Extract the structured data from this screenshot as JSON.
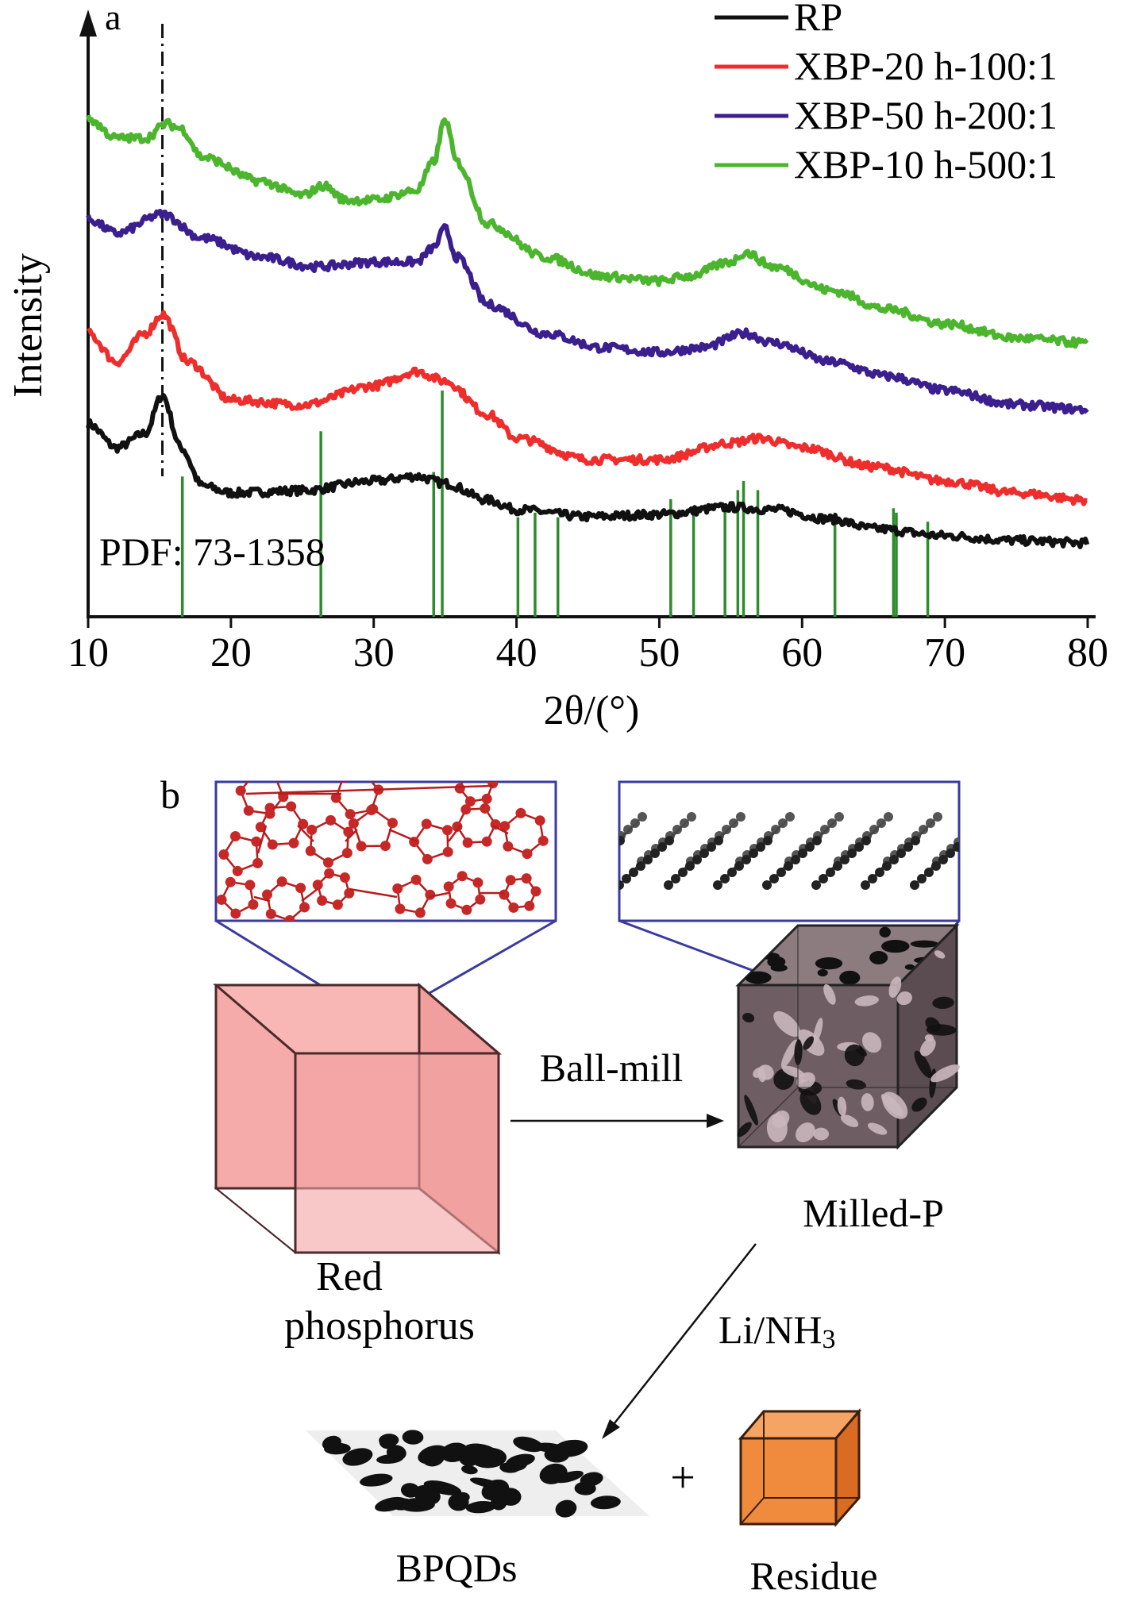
{
  "panel_a_label": "a",
  "panel_b_label": "b",
  "chart_data": {
    "type": "line",
    "title": "",
    "xlabel": "2θ/(°)",
    "ylabel": "Intensity",
    "xlim": [
      10,
      80
    ],
    "xticks": [
      10,
      20,
      30,
      40,
      50,
      60,
      70,
      80
    ],
    "legend_position": "top-right",
    "annotation": "PDF: 73-1358",
    "reference_line_x": 15.2,
    "series": [
      {
        "name": "RP",
        "color": "#111111",
        "points": [
          [
            10,
            0.62
          ],
          [
            12,
            0.52
          ],
          [
            14,
            0.58
          ],
          [
            15.2,
            0.74
          ],
          [
            16.5,
            0.52
          ],
          [
            18,
            0.36
          ],
          [
            20,
            0.33
          ],
          [
            25,
            0.34
          ],
          [
            30,
            0.38
          ],
          [
            33,
            0.4
          ],
          [
            35,
            0.37
          ],
          [
            38,
            0.3
          ],
          [
            40,
            0.26
          ],
          [
            45,
            0.23
          ],
          [
            50,
            0.24
          ],
          [
            55,
            0.27
          ],
          [
            58,
            0.26
          ],
          [
            62,
            0.22
          ],
          [
            65,
            0.18
          ],
          [
            70,
            0.15
          ],
          [
            75,
            0.13
          ],
          [
            80,
            0.12
          ]
        ]
      },
      {
        "name": "XBP-20 h-100:1",
        "color": "#ee2d2d",
        "points": [
          [
            10,
            1.0
          ],
          [
            12,
            0.88
          ],
          [
            14,
            1.0
          ],
          [
            15.2,
            1.08
          ],
          [
            17,
            0.88
          ],
          [
            20,
            0.72
          ],
          [
            25,
            0.7
          ],
          [
            30,
            0.78
          ],
          [
            33,
            0.84
          ],
          [
            35,
            0.8
          ],
          [
            38,
            0.66
          ],
          [
            40,
            0.56
          ],
          [
            45,
            0.47
          ],
          [
            50,
            0.47
          ],
          [
            55,
            0.54
          ],
          [
            57,
            0.56
          ],
          [
            60,
            0.52
          ],
          [
            65,
            0.44
          ],
          [
            70,
            0.38
          ],
          [
            75,
            0.33
          ],
          [
            80,
            0.3
          ]
        ]
      },
      {
        "name": "XBP-50 h-200:1",
        "color": "#3b1f8f",
        "points": [
          [
            10,
            1.48
          ],
          [
            12,
            1.42
          ],
          [
            15.2,
            1.5
          ],
          [
            18,
            1.4
          ],
          [
            22,
            1.32
          ],
          [
            26,
            1.28
          ],
          [
            30,
            1.3
          ],
          [
            33,
            1.3
          ],
          [
            34.2,
            1.36
          ],
          [
            35,
            1.44
          ],
          [
            35.8,
            1.32
          ],
          [
            38,
            1.12
          ],
          [
            42,
            1.0
          ],
          [
            46,
            0.94
          ],
          [
            50,
            0.92
          ],
          [
            53,
            0.94
          ],
          [
            56,
            1.0
          ],
          [
            58,
            0.96
          ],
          [
            62,
            0.88
          ],
          [
            66,
            0.82
          ],
          [
            70,
            0.76
          ],
          [
            75,
            0.7
          ],
          [
            80,
            0.68
          ]
        ]
      },
      {
        "name": "XBP-10 h-500:1",
        "color": "#4cb52e",
        "points": [
          [
            10,
            1.9
          ],
          [
            12,
            1.82
          ],
          [
            14,
            1.82
          ],
          [
            15.5,
            1.88
          ],
          [
            16.5,
            1.86
          ],
          [
            18,
            1.74
          ],
          [
            22,
            1.64
          ],
          [
            25,
            1.58
          ],
          [
            26.5,
            1.62
          ],
          [
            28,
            1.56
          ],
          [
            30,
            1.56
          ],
          [
            33,
            1.6
          ],
          [
            34.2,
            1.72
          ],
          [
            35,
            1.9
          ],
          [
            35.8,
            1.72
          ],
          [
            38,
            1.46
          ],
          [
            42,
            1.32
          ],
          [
            46,
            1.24
          ],
          [
            50,
            1.22
          ],
          [
            52,
            1.24
          ],
          [
            55,
            1.3
          ],
          [
            56,
            1.34
          ],
          [
            58,
            1.28
          ],
          [
            62,
            1.18
          ],
          [
            66,
            1.1
          ],
          [
            70,
            1.04
          ],
          [
            75,
            0.98
          ],
          [
            80,
            0.96
          ]
        ]
      }
    ],
    "reference_sticks": {
      "name": "PDF: 73-1358",
      "color": "#2e8b2e",
      "positions": [
        16.6,
        26.3,
        34.2,
        34.8,
        40.1,
        41.3,
        42.9,
        50.8,
        52.4,
        54.6,
        55.5,
        55.9,
        56.9,
        62.3,
        66.4,
        66.6,
        68.8
      ],
      "heights": [
        0.62,
        0.82,
        0.64,
        1.0,
        0.44,
        0.46,
        0.44,
        0.52,
        0.48,
        0.48,
        0.56,
        0.6,
        0.56,
        0.46,
        0.48,
        0.46,
        0.42
      ]
    }
  },
  "diagram": {
    "ball_mill_label": "Ball-mill",
    "milled_label": "Milled-P",
    "red_phosphorus_line1": "Red",
    "red_phosphorus_line2": "phosphorus",
    "li_nh3_label_main": "Li/NH",
    "li_nh3_label_sub": "3",
    "plus_sign": "+",
    "bpqds_label": "BPQDs",
    "residue_label": "Residue",
    "colors": {
      "red_cube": "#f4a6a4",
      "red_cube_edge": "#4a2a2a",
      "milled_cube": "#6b5b60",
      "residue_cube": "#f08030",
      "inset_frame": "#3a3aa0",
      "red_atom": "#c62828",
      "black_atom": "#222222"
    }
  }
}
